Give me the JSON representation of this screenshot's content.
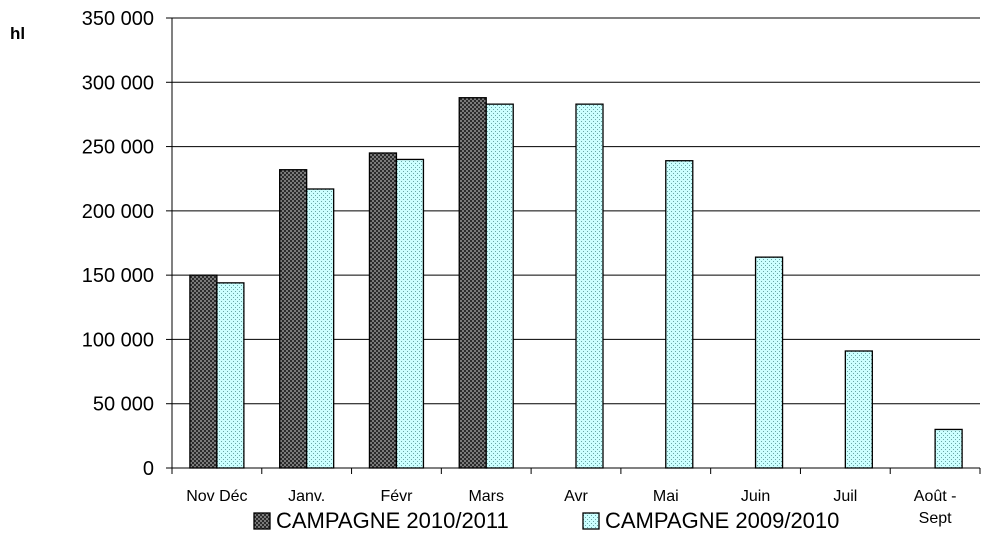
{
  "chart_data": {
    "type": "bar",
    "ylabel": "hl",
    "ylim": [
      0,
      350000
    ],
    "ytick_step": 50000,
    "yticks": [
      "0",
      "50 000",
      "100 000",
      "150 000",
      "200 000",
      "250 000",
      "300 000",
      "350 000"
    ],
    "categories": [
      "Nov Déc",
      "Janv.",
      "Févr",
      "Mars",
      "Avr",
      "Mai",
      "Juin",
      "Juil",
      "Août -\nSept"
    ],
    "grid": true,
    "legend_position": "bottom",
    "series": [
      {
        "name": "CAMPAGNE 2010/2011",
        "color": "#3a3a3a",
        "pattern": "dark-checker",
        "values": [
          150000,
          232000,
          245000,
          288000,
          null,
          null,
          null,
          null,
          null
        ]
      },
      {
        "name": "CAMPAGNE 2009/2010",
        "color": "#ccffff",
        "pattern": "light-dots",
        "values": [
          144000,
          217000,
          240000,
          283000,
          283000,
          239000,
          164000,
          91000,
          30000
        ]
      }
    ]
  }
}
